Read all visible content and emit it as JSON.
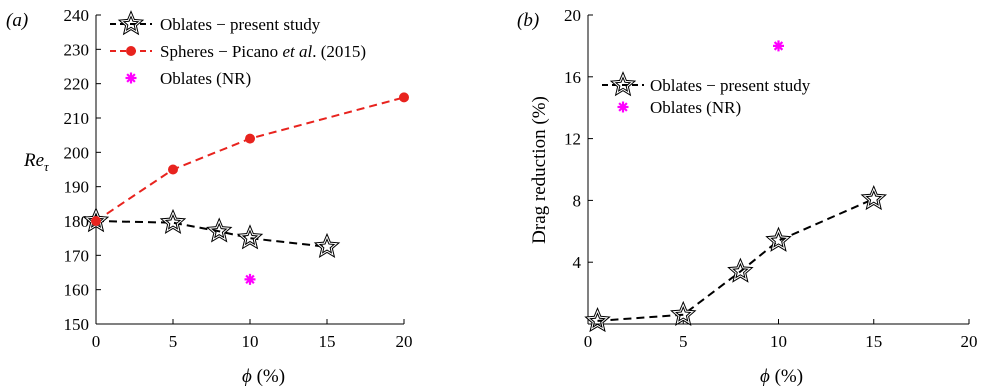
{
  "chart_data": [
    {
      "type": "line",
      "panel_label": "(a)",
      "xlabel": "ϕ (%)",
      "ylabel": "Reτ",
      "xlim": [
        0,
        20
      ],
      "ylim": [
        150,
        240
      ],
      "xticks": [
        0,
        5,
        10,
        15,
        20
      ],
      "yticks": [
        150,
        160,
        170,
        180,
        190,
        200,
        210,
        220,
        230,
        240
      ],
      "legend_position": "top-right",
      "series": [
        {
          "name": "Oblates − present study",
          "marker": "star",
          "color": "#000000",
          "line": "dashed",
          "x": [
            0,
            5,
            8,
            10,
            15
          ],
          "y": [
            180,
            179.5,
            177,
            175,
            172.5
          ]
        },
        {
          "name": "Spheres − Picano et al. (2015)",
          "marker": "circle",
          "color": "#e8231e",
          "line": "dashed",
          "x": [
            0,
            5,
            10,
            20
          ],
          "y": [
            180,
            195,
            204,
            216
          ]
        },
        {
          "name": "Oblates (NR)",
          "marker": "asterisk",
          "color": "#ff00ff",
          "line": "none",
          "x": [
            10
          ],
          "y": [
            163
          ]
        }
      ]
    },
    {
      "type": "line",
      "panel_label": "(b)",
      "xlabel": "ϕ (%)",
      "ylabel": "Drag reduction (%)",
      "xlim": [
        0,
        20
      ],
      "ylim": [
        0,
        20
      ],
      "xticks": [
        0,
        5,
        10,
        15,
        20
      ],
      "yticks": [
        0,
        4,
        8,
        12,
        16,
        20
      ],
      "legend_position": "top-left",
      "series": [
        {
          "name": "Oblates − present study",
          "marker": "star",
          "color": "#000000",
          "line": "dashed",
          "x": [
            0.5,
            5,
            8,
            10,
            15
          ],
          "y": [
            0.2,
            0.6,
            3.4,
            5.4,
            8.1
          ]
        },
        {
          "name": "Oblates (NR)",
          "marker": "asterisk",
          "color": "#ff00ff",
          "line": "none",
          "x": [
            10
          ],
          "y": [
            18
          ]
        }
      ]
    }
  ]
}
